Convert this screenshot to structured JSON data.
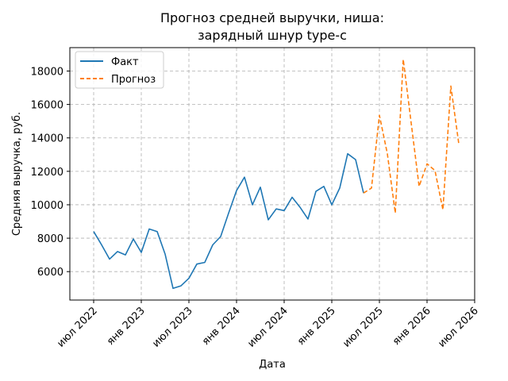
{
  "chart_data": {
    "type": "line",
    "title": [
      "Прогноз средней выручки, ниша:",
      "зарядный шнур type-c"
    ],
    "xlabel": "Дата",
    "ylabel": "Средняя выручка, руб.",
    "x_ticks": [
      {
        "date": "2022-07",
        "label": "июл 2022"
      },
      {
        "date": "2023-01",
        "label": "янв 2023"
      },
      {
        "date": "2023-07",
        "label": "июл 2023"
      },
      {
        "date": "2024-01",
        "label": "янв 2024"
      },
      {
        "date": "2024-07",
        "label": "июл 2024"
      },
      {
        "date": "2025-01",
        "label": "янв 2025"
      },
      {
        "date": "2025-07",
        "label": "июл 2025"
      },
      {
        "date": "2026-01",
        "label": "янв 2026"
      },
      {
        "date": "2026-07",
        "label": "июл 2026"
      }
    ],
    "y_ticks": [
      6000,
      8000,
      10000,
      12000,
      14000,
      16000,
      18000
    ],
    "xlim": [
      "2022-04",
      "2026-07"
    ],
    "ylim": [
      4300,
      19400
    ],
    "grid": true,
    "legend_position": "top-left",
    "series": [
      {
        "name": "Факт",
        "color": "#1f77b4",
        "style": "solid",
        "points": [
          [
            "2022-07",
            8400
          ],
          [
            "2022-08",
            7600
          ],
          [
            "2022-09",
            6750
          ],
          [
            "2022-10",
            7200
          ],
          [
            "2022-11",
            7000
          ],
          [
            "2022-12",
            7950
          ],
          [
            "2023-01",
            7150
          ],
          [
            "2023-02",
            8550
          ],
          [
            "2023-03",
            8400
          ],
          [
            "2023-04",
            7050
          ],
          [
            "2023-05",
            5000
          ],
          [
            "2023-06",
            5150
          ],
          [
            "2023-07",
            5600
          ],
          [
            "2023-08",
            6450
          ],
          [
            "2023-09",
            6550
          ],
          [
            "2023-10",
            7600
          ],
          [
            "2023-11",
            8100
          ],
          [
            "2023-12",
            9500
          ],
          [
            "2024-01",
            10850
          ],
          [
            "2024-02",
            11650
          ],
          [
            "2024-03",
            10000
          ],
          [
            "2024-04",
            11050
          ],
          [
            "2024-05",
            9100
          ],
          [
            "2024-06",
            9750
          ],
          [
            "2024-07",
            9650
          ],
          [
            "2024-08",
            10450
          ],
          [
            "2024-09",
            9850
          ],
          [
            "2024-10",
            9150
          ],
          [
            "2024-11",
            10800
          ],
          [
            "2024-12",
            11100
          ],
          [
            "2025-01",
            10000
          ],
          [
            "2025-02",
            11000
          ],
          [
            "2025-03",
            13050
          ],
          [
            "2025-04",
            12700
          ],
          [
            "2025-05",
            10700
          ]
        ]
      },
      {
        "name": "Прогноз",
        "color": "#ff7f0e",
        "style": "dashed",
        "points": [
          [
            "2025-05",
            10700
          ],
          [
            "2025-06",
            11000
          ],
          [
            "2025-07",
            15350
          ],
          [
            "2025-08",
            13050
          ],
          [
            "2025-09",
            9500
          ],
          [
            "2025-10",
            18700
          ],
          [
            "2025-11",
            14900
          ],
          [
            "2025-12",
            11100
          ],
          [
            "2026-01",
            12450
          ],
          [
            "2026-02",
            12050
          ],
          [
            "2026-03",
            9700
          ],
          [
            "2026-04",
            17100
          ],
          [
            "2026-05",
            13650
          ]
        ]
      }
    ]
  }
}
